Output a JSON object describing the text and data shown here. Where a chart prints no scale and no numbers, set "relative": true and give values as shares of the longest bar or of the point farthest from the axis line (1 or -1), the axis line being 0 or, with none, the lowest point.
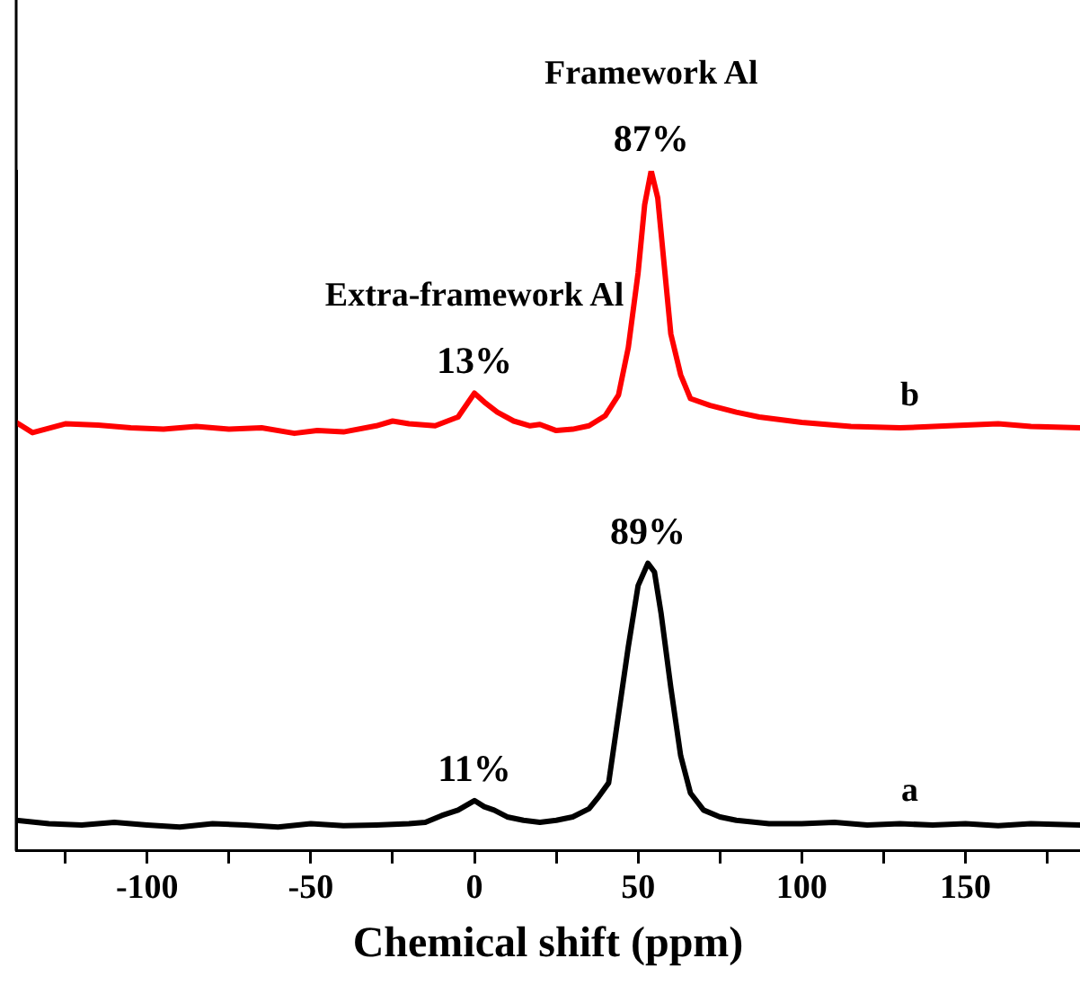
{
  "chart_data": {
    "type": "line",
    "relative": true,
    "xlabel": "Chemical shift (ppm)",
    "xlim": [
      -140,
      185
    ],
    "xticks": [
      {
        "value": -125,
        "label": null
      },
      -100,
      {
        "value": -75,
        "label": null
      },
      -50,
      {
        "value": -25,
        "label": null
      },
      0,
      {
        "value": 25,
        "label": null
      },
      50,
      {
        "value": 75,
        "label": null
      },
      100,
      {
        "value": 125,
        "label": null
      },
      150,
      {
        "value": 175,
        "label": null
      }
    ],
    "grid": false,
    "legend": false,
    "marker": "none",
    "line_style": "solid",
    "series": [
      {
        "name": "a",
        "color": "#000000",
        "x": [
          -140,
          -130,
          -120,
          -110,
          -100,
          -90,
          -80,
          -70,
          -60,
          -50,
          -40,
          -30,
          -20,
          -15,
          -10,
          -5,
          0,
          3,
          6,
          10,
          15,
          20,
          25,
          30,
          35,
          38,
          41,
          44,
          47,
          50,
          53,
          55,
          57,
          60,
          63,
          66,
          70,
          75,
          80,
          90,
          100,
          110,
          120,
          130,
          140,
          150,
          160,
          170,
          185
        ],
        "values": [
          0.045,
          0.04,
          0.038,
          0.042,
          0.038,
          0.035,
          0.04,
          0.038,
          0.035,
          0.04,
          0.037,
          0.038,
          0.04,
          0.042,
          0.052,
          0.06,
          0.074,
          0.065,
          0.06,
          0.05,
          0.045,
          0.042,
          0.045,
          0.05,
          0.062,
          0.08,
          0.1,
          0.2,
          0.3,
          0.39,
          0.423,
          0.41,
          0.35,
          0.24,
          0.14,
          0.085,
          0.06,
          0.05,
          0.045,
          0.04,
          0.04,
          0.042,
          0.038,
          0.04,
          0.038,
          0.04,
          0.037,
          0.04,
          0.038
        ]
      },
      {
        "name": "b",
        "color": "#ff0000",
        "x": [
          -140,
          -135,
          -125,
          -115,
          -105,
          -95,
          -85,
          -75,
          -65,
          -55,
          -48,
          -40,
          -30,
          -25,
          -20,
          -12,
          -5,
          0,
          3,
          7,
          12,
          17,
          20,
          25,
          30,
          35,
          40,
          44,
          47,
          50,
          52,
          54,
          56,
          58,
          60,
          63,
          66,
          72,
          80,
          87,
          100,
          115,
          130,
          145,
          160,
          170,
          185
        ],
        "values": [
          0.63,
          0.615,
          0.628,
          0.626,
          0.622,
          0.62,
          0.624,
          0.62,
          0.622,
          0.614,
          0.618,
          0.616,
          0.625,
          0.632,
          0.628,
          0.625,
          0.638,
          0.673,
          0.66,
          0.645,
          0.632,
          0.625,
          0.627,
          0.618,
          0.62,
          0.625,
          0.64,
          0.67,
          0.74,
          0.85,
          0.95,
          1,
          0.96,
          0.86,
          0.76,
          0.7,
          0.665,
          0.655,
          0.645,
          0.638,
          0.63,
          0.624,
          0.622,
          0.625,
          0.628,
          0.624,
          0.622
        ]
      }
    ],
    "annotations": [
      {
        "text": "87%",
        "x": 54,
        "y": 1
      },
      {
        "text": "Framework Al",
        "x": 54,
        "y": 1
      },
      {
        "text": "13%",
        "x": 0,
        "y": 0.673
      },
      {
        "text": "Extra-framework Al",
        "x": 0,
        "y": 0.673
      },
      {
        "text": "89%",
        "x": 53,
        "y": 0.423
      },
      {
        "text": "11%",
        "x": 0,
        "y": 0.074
      }
    ]
  }
}
